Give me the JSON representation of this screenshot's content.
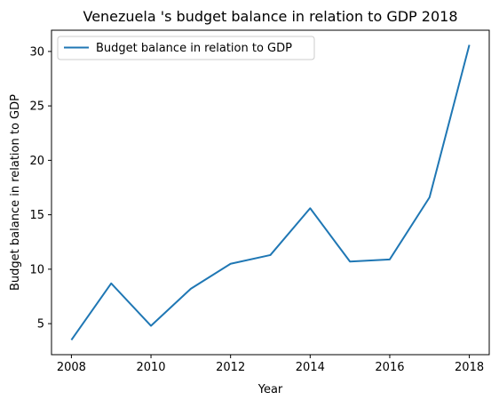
{
  "chart_data": {
    "type": "line",
    "title": "Venezuela 's budget balance in relation to GDP 2018",
    "xlabel": "Year",
    "ylabel": "Budget balance in relation to GDP",
    "x": [
      2008,
      2009,
      2010,
      2011,
      2012,
      2013,
      2014,
      2015,
      2016,
      2017,
      2018
    ],
    "series": [
      {
        "name": "Budget balance in relation to GDP",
        "values": [
          3.5,
          8.7,
          4.8,
          8.2,
          10.5,
          11.3,
          15.6,
          10.7,
          10.9,
          16.6,
          30.6
        ],
        "color": "#1f77b4"
      }
    ],
    "xlim": [
      2007.5,
      2018.5
    ],
    "ylim": [
      2.15,
      31.95
    ],
    "xticks": [
      2008,
      2010,
      2012,
      2014,
      2016,
      2018
    ],
    "yticks": [
      5,
      10,
      15,
      20,
      25,
      30
    ],
    "grid": false,
    "legend": "top-left"
  }
}
